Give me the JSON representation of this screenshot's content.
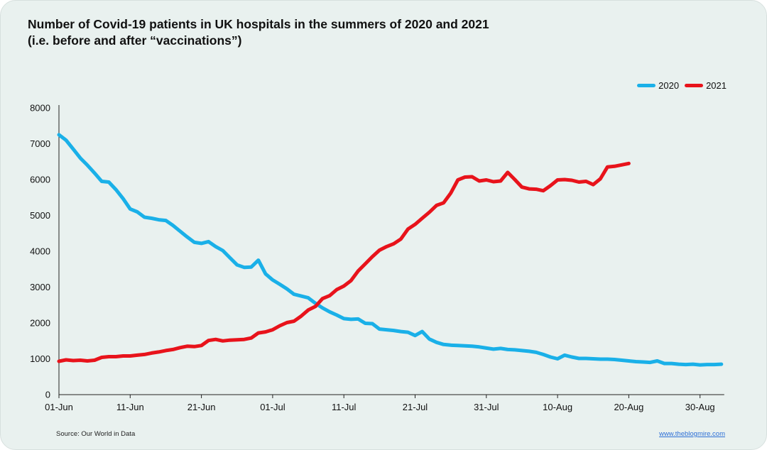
{
  "title": {
    "line1": "Number of Covid-19 patients in UK hospitals in the summers of 2020 and 2021",
    "line2": "(i.e. before and after “vaccinations”)"
  },
  "footer": {
    "source": "Source: Our World in Data",
    "site": "www.theblogmire.com"
  },
  "chart_data": {
    "type": "line",
    "ylim": [
      0,
      8000
    ],
    "yticks": [
      0,
      1000,
      2000,
      3000,
      4000,
      5000,
      6000,
      7000,
      8000
    ],
    "ytick_labels": [
      "0",
      "1000",
      "2000",
      "3000",
      "4000",
      "5000",
      "6000",
      "7000",
      "8000"
    ],
    "xtick_labels": [
      "01-Jun",
      "11-Jun",
      "21-Jun",
      "01-Jul",
      "11-Jul",
      "21-Jul",
      "31-Jul",
      "10-Aug",
      "20-Aug",
      "30-Aug"
    ],
    "xtick_days": [
      0,
      10,
      20,
      30,
      40,
      50,
      60,
      70,
      80,
      90
    ],
    "legend_position": "top-right",
    "grid": false,
    "series": [
      {
        "name": "2020",
        "color": "#1ab0e8",
        "values": [
          7250,
          7100,
          6850,
          6600,
          6400,
          6180,
          5950,
          5930,
          5720,
          5470,
          5180,
          5100,
          4950,
          4920,
          4880,
          4860,
          4720,
          4560,
          4400,
          4250,
          4220,
          4270,
          4130,
          4020,
          3820,
          3620,
          3550,
          3560,
          3750,
          3370,
          3200,
          3080,
          2950,
          2800,
          2750,
          2700,
          2550,
          2420,
          2310,
          2220,
          2120,
          2100,
          2110,
          1990,
          1980,
          1830,
          1810,
          1790,
          1760,
          1740,
          1650,
          1760,
          1550,
          1460,
          1400,
          1380,
          1370,
          1360,
          1350,
          1330,
          1300,
          1270,
          1290,
          1260,
          1250,
          1230,
          1210,
          1180,
          1120,
          1050,
          1000,
          1100,
          1050,
          1010,
          1010,
          1000,
          990,
          990,
          980,
          960,
          940,
          920,
          910,
          900,
          940,
          870,
          870,
          850,
          840,
          850,
          830,
          840,
          840,
          850
        ]
      },
      {
        "name": "2021",
        "color": "#e8131b",
        "values": [
          930,
          970,
          950,
          960,
          940,
          960,
          1040,
          1060,
          1060,
          1080,
          1080,
          1100,
          1120,
          1160,
          1190,
          1230,
          1260,
          1310,
          1350,
          1340,
          1370,
          1510,
          1540,
          1500,
          1520,
          1530,
          1540,
          1580,
          1720,
          1750,
          1810,
          1920,
          2010,
          2050,
          2190,
          2360,
          2460,
          2680,
          2760,
          2930,
          3030,
          3180,
          3450,
          3650,
          3850,
          4030,
          4130,
          4210,
          4340,
          4620,
          4750,
          4920,
          5090,
          5280,
          5350,
          5620,
          5990,
          6070,
          6080,
          5960,
          5990,
          5940,
          5960,
          6200,
          6000,
          5790,
          5740,
          5730,
          5690,
          5830,
          5990,
          6000,
          5980,
          5930,
          5950,
          5860,
          6020,
          6350,
          6370,
          6410,
          6450
        ]
      }
    ]
  }
}
